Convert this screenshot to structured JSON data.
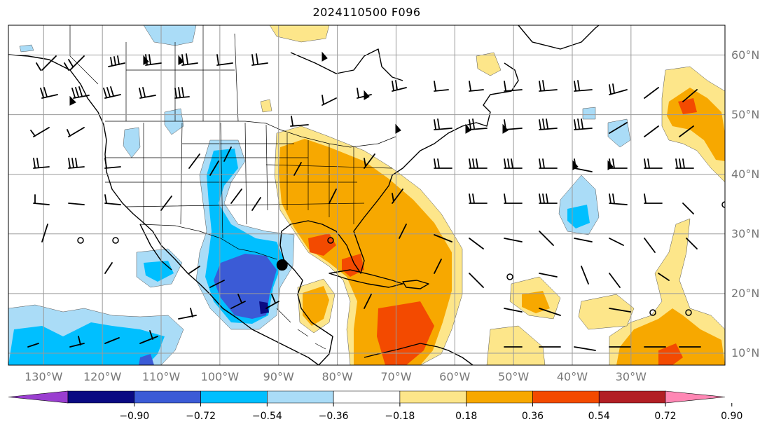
{
  "title": "2024110500 F096",
  "map": {
    "projection": "PlateCarree",
    "extent": {
      "lon": [
        -136,
        -14
      ],
      "lat": [
        8,
        65
      ]
    },
    "lat_gridlines": [
      10,
      20,
      30,
      40,
      50,
      60
    ],
    "lon_gridlines": [
      -130,
      -120,
      -110,
      -100,
      -90,
      -80,
      -70,
      -60,
      -50,
      -40,
      -30
    ],
    "lat_labels": [
      "10°N",
      "20°N",
      "30°N",
      "40°N",
      "50°N",
      "60°N"
    ],
    "lon_labels": [
      "130°W",
      "120°W",
      "110°W",
      "100°W",
      "90°W",
      "80°W",
      "70°W",
      "60°W",
      "50°W",
      "40°W",
      "30°W"
    ],
    "storm_marker": {
      "lon": -89.4,
      "lat": 24.8
    }
  },
  "colorbar": {
    "ticks": [
      "−0.90",
      "−0.72",
      "−0.54",
      "−0.36",
      "−0.18",
      "0.18",
      "0.36",
      "0.54",
      "0.72",
      "0.90"
    ],
    "colors": [
      "#9a3ed0",
      "#0a0a82",
      "#3b5bd6",
      "#00bfff",
      "#aadcf7",
      "#ffffff",
      "#fde68a",
      "#f7a800",
      "#f34a00",
      "#b21f24",
      "#ff87b4"
    ],
    "extend": "both"
  },
  "colors": {
    "pos_light": "#fde68a",
    "pos_mid": "#f7a800",
    "pos_strong": "#f34a00",
    "neg_light": "#aadcf7",
    "neg_mid": "#00bfff",
    "neg_strong": "#3b5bd6",
    "neg_max": "#0a0a82"
  }
}
